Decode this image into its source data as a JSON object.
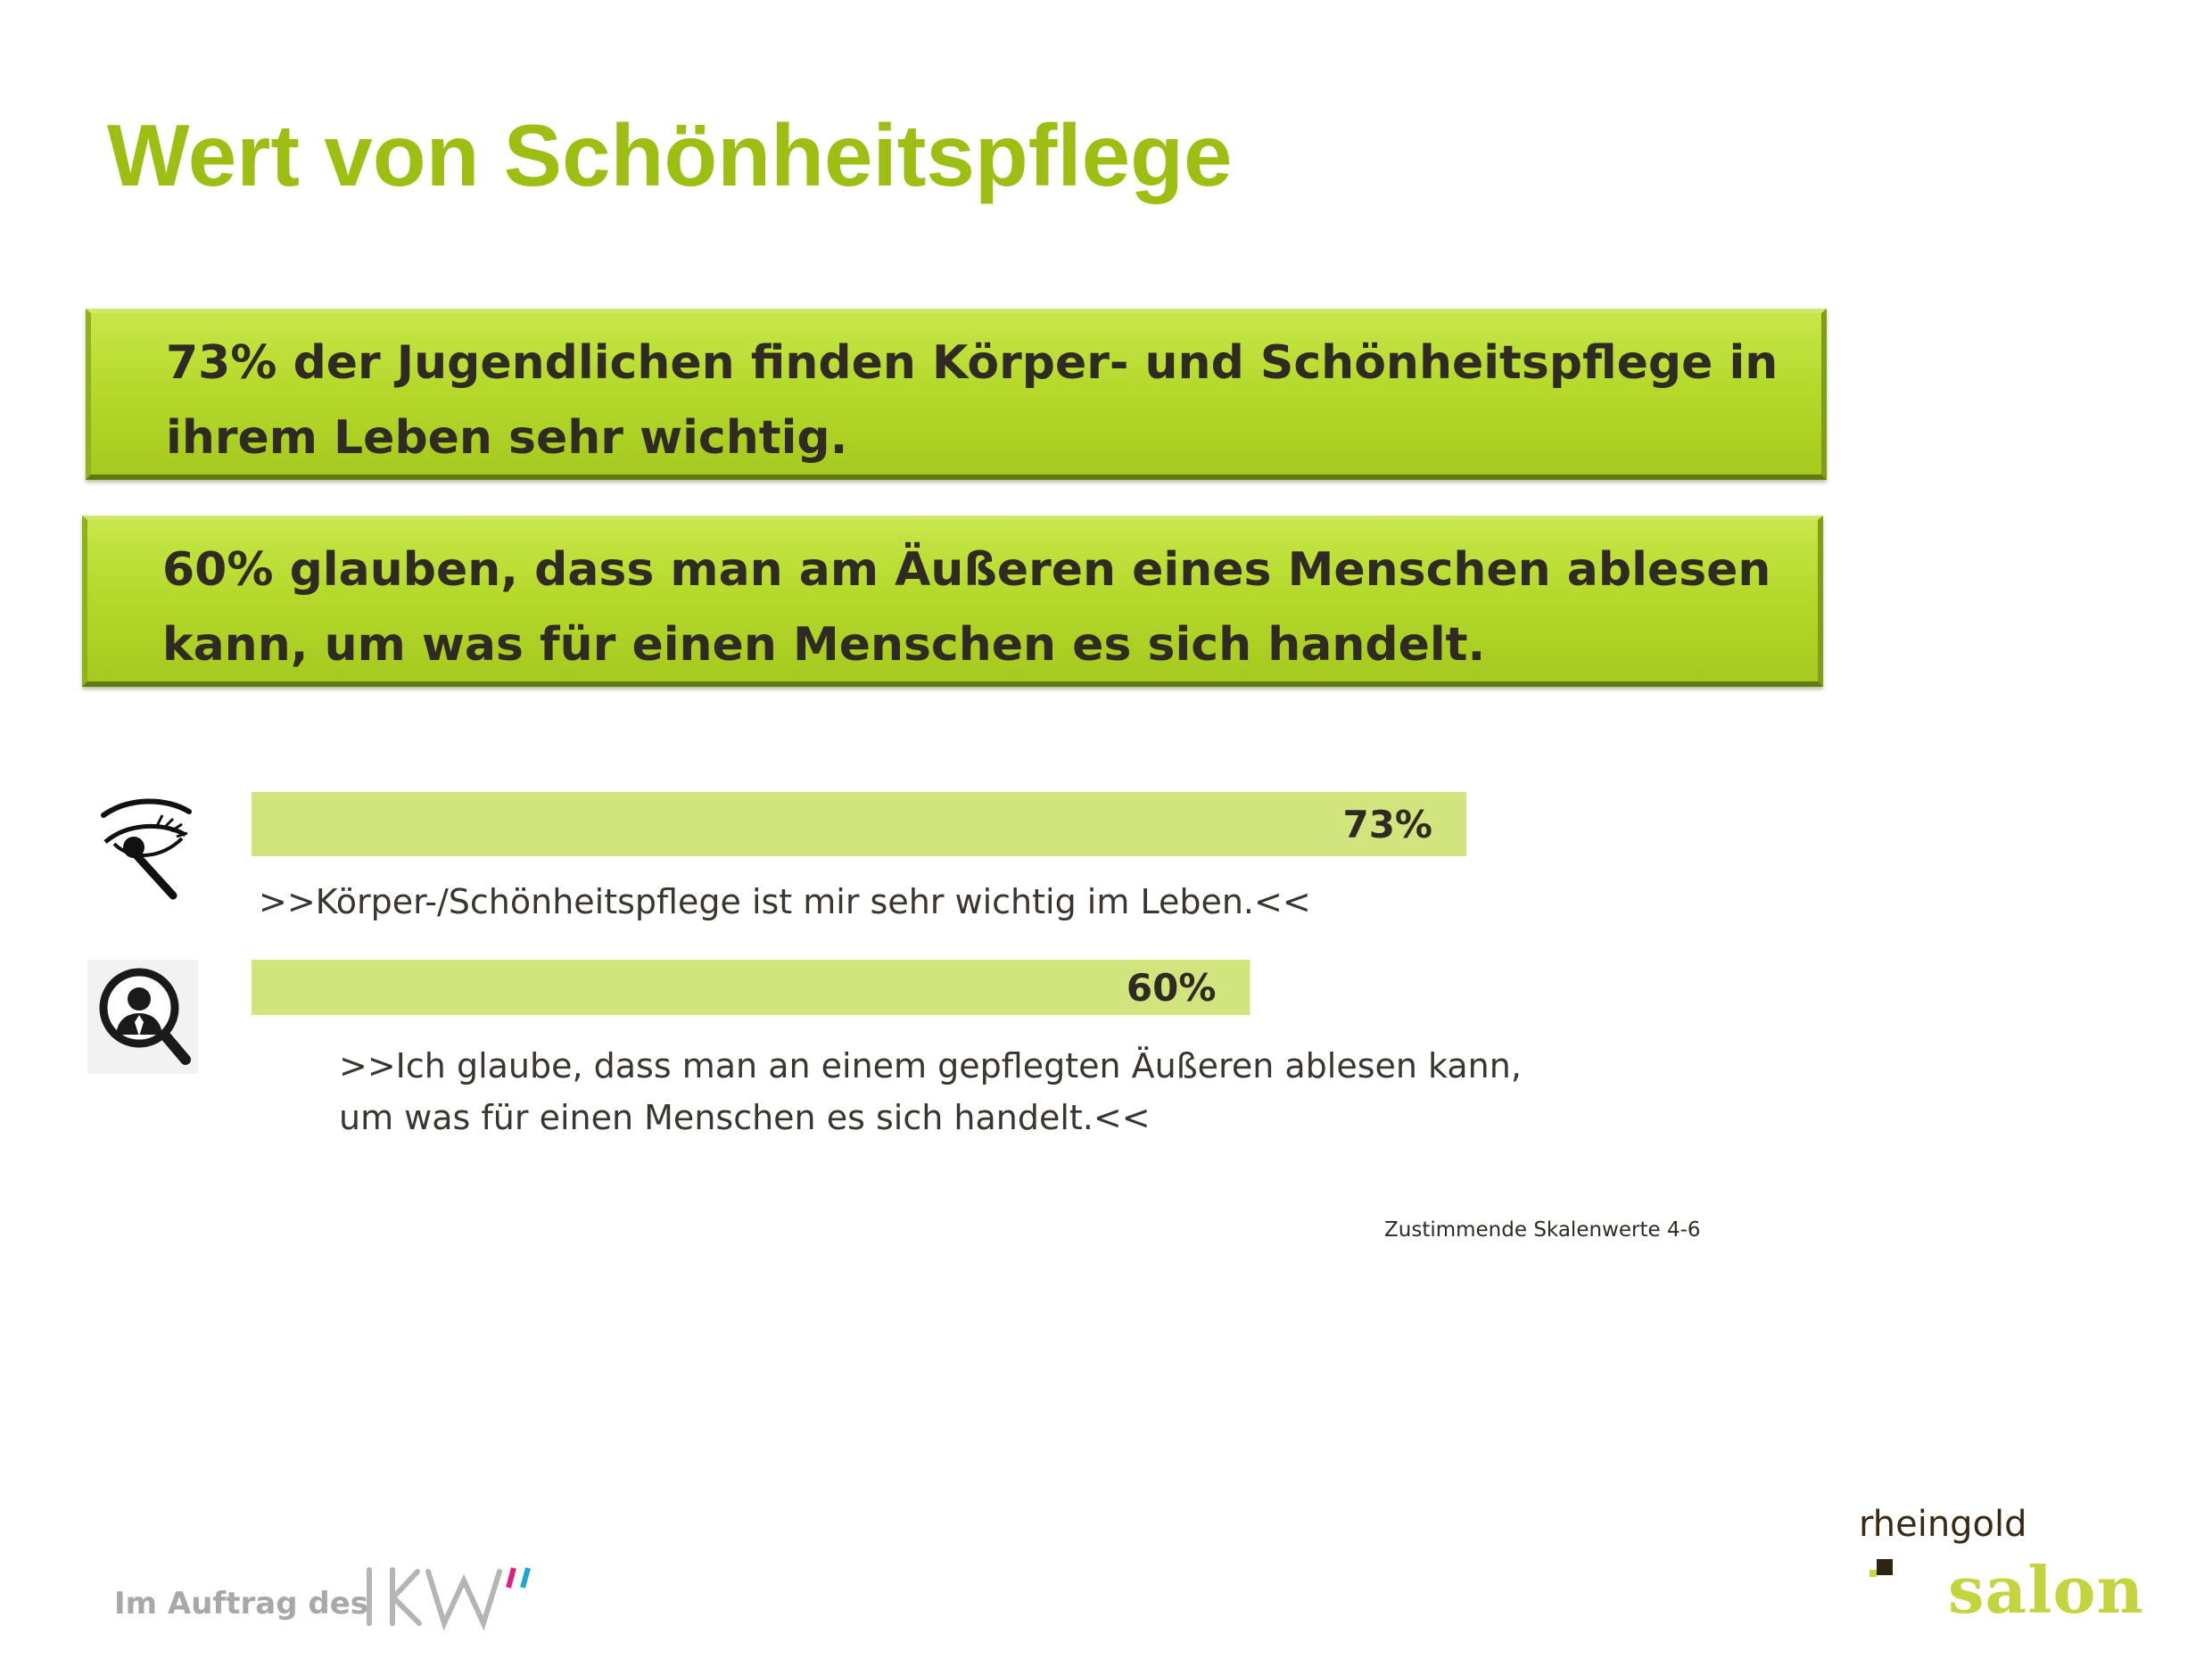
{
  "title": "Wert von Schönheitspflege",
  "banners": [
    {
      "text": "73% der Jugendlichen finden Körper- und Schönheitspflege in ihrem Leben sehr wichtig."
    },
    {
      "text": "60% glauben, dass man am Äußeren eines Menschen ablesen kann, um was für einen Menschen es sich handelt."
    }
  ],
  "statements": [
    {
      "lines": [
        ">>Körper-/Schönheitspflege ist mir sehr wichtig im Leben.<<"
      ]
    },
    {
      "lines": [
        ">>Ich glaube, dass man an einem gepflegten Äußeren ablesen kann,",
        "um was für einen Menschen es sich handelt.<<"
      ]
    }
  ],
  "icons": [
    "eye-with-mascara-icon",
    "person-magnifier-icon"
  ],
  "note": "Zustimmende Skalenwerte 4-6",
  "footer": {
    "commissioned_by": "Im Auftrag des",
    "client_logo": "IKW",
    "agency_name": "rheingold",
    "agency_sub": "salon"
  },
  "colors": {
    "title": "#9dbf14",
    "banner": "#b6d92c",
    "bar": "#d2e47e",
    "text_dark": "#2f2a22"
  },
  "chart_data": {
    "type": "bar",
    "orientation": "horizontal",
    "categories": [
      ">>Körper-/Schönheitspflege ist mir sehr wichtig im Leben.<<",
      ">>Ich glaube, dass man an einem gepflegten Äußeren ablesen kann, um was für einen Menschen es sich handelt.<<"
    ],
    "values": [
      73,
      60
    ],
    "data_labels": [
      "73%",
      "60%"
    ],
    "unit": "%",
    "xlim": [
      0,
      100
    ],
    "grid": false,
    "legend": "none"
  }
}
